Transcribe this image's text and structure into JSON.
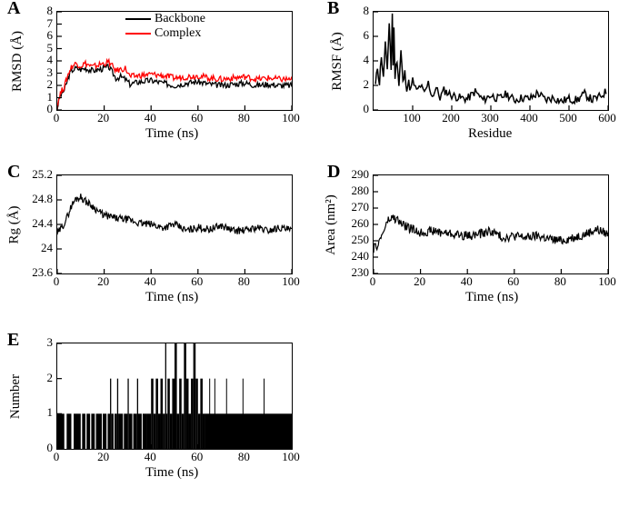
{
  "global": {
    "bg": "#ffffff",
    "fg": "#000000",
    "font_family": "Times New Roman, serif",
    "panel_label_fontsize": 20,
    "axis_label_fontsize": 15,
    "tick_fontsize": 13
  },
  "panels": {
    "A": {
      "label": "A",
      "type": "line",
      "xlabel": "Time (ns)",
      "ylabel": "RMSD (Å)",
      "xlim": [
        0,
        100
      ],
      "ylim": [
        0,
        8
      ],
      "xticks": [
        0,
        20,
        40,
        60,
        80,
        100
      ],
      "yticks": [
        0,
        1,
        2,
        3,
        4,
        5,
        6,
        7,
        8
      ],
      "line_width": 1.3,
      "series": [
        {
          "name": "Backbone",
          "color": "#000000",
          "x": [
            0,
            1,
            2,
            3,
            4,
            5,
            6,
            8,
            10,
            12,
            15,
            18,
            20,
            22,
            25,
            27,
            29,
            31,
            35,
            40,
            45,
            50,
            55,
            60,
            65,
            70,
            75,
            80,
            85,
            90,
            95,
            100
          ],
          "y": [
            0.2,
            1.0,
            1.4,
            1.6,
            2.2,
            2.8,
            3.2,
            3.4,
            3.3,
            3.4,
            3.2,
            3.3,
            3.4,
            3.5,
            2.6,
            2.7,
            2.5,
            2.1,
            2.3,
            2.4,
            2.2,
            2.0,
            2.2,
            2.3,
            2.1,
            2.0,
            2.1,
            2.2,
            2.0,
            2.1,
            2.0,
            2.0
          ]
        },
        {
          "name": "Complex",
          "color": "#ff0000",
          "x": [
            0,
            1,
            2,
            3,
            4,
            5,
            6,
            8,
            10,
            12,
            15,
            18,
            20,
            22,
            25,
            27,
            29,
            31,
            35,
            40,
            45,
            50,
            55,
            60,
            65,
            70,
            75,
            80,
            85,
            90,
            95,
            100
          ],
          "y": [
            0.3,
            1.2,
            1.6,
            1.9,
            2.5,
            3.1,
            3.5,
            3.8,
            3.6,
            3.8,
            3.5,
            3.7,
            3.8,
            3.9,
            3.2,
            3.3,
            3.4,
            2.7,
            2.8,
            2.9,
            2.8,
            2.6,
            2.7,
            2.8,
            2.6,
            2.5,
            2.6,
            2.7,
            2.5,
            2.6,
            2.5,
            2.5
          ]
        }
      ],
      "legend": {
        "pos": "top-inside",
        "items": [
          "Backbone",
          "Complex"
        ],
        "colors": [
          "#000000",
          "#ff0000"
        ]
      }
    },
    "B": {
      "label": "B",
      "type": "line",
      "xlabel": "Residue",
      "ylabel": "RMSF (Å)",
      "xlim": [
        0,
        600
      ],
      "ylim": [
        0,
        8
      ],
      "xticks": [
        100,
        200,
        300,
        400,
        500,
        600
      ],
      "yticks": [
        0,
        2,
        4,
        6,
        8
      ],
      "line_width": 1.5,
      "series": [
        {
          "name": "RMSF",
          "color": "#000000",
          "x": [
            5,
            10,
            15,
            20,
            25,
            30,
            35,
            40,
            45,
            48,
            50,
            52,
            55,
            60,
            65,
            70,
            75,
            80,
            85,
            90,
            95,
            100,
            110,
            120,
            130,
            140,
            150,
            160,
            170,
            180,
            200,
            220,
            240,
            260,
            280,
            300,
            320,
            340,
            360,
            380,
            400,
            420,
            440,
            460,
            480,
            500,
            520,
            540,
            560,
            580,
            595
          ],
          "y": [
            2.0,
            3.5,
            2.2,
            4.5,
            2.5,
            5.5,
            3.0,
            7.2,
            3.3,
            7.8,
            3.8,
            6.5,
            2.8,
            4.2,
            2.0,
            4.8,
            2.2,
            3.0,
            1.8,
            2.2,
            1.6,
            2.4,
            1.5,
            2.0,
            1.3,
            2.2,
            1.1,
            1.8,
            1.0,
            1.6,
            1.2,
            1.0,
            0.9,
            1.5,
            0.8,
            1.2,
            0.9,
            1.3,
            0.8,
            1.0,
            0.9,
            1.4,
            0.8,
            1.0,
            0.7,
            0.9,
            0.8,
            1.3,
            0.8,
            1.1,
            1.5
          ]
        }
      ]
    },
    "C": {
      "label": "C",
      "type": "line",
      "xlabel": "Time (ns)",
      "ylabel": "Rg (Å)",
      "xlim": [
        0,
        100
      ],
      "ylim": [
        23.6,
        25.2
      ],
      "xticks": [
        0,
        20,
        40,
        60,
        80,
        100
      ],
      "yticks": [
        23.6,
        24,
        24.4,
        24.8,
        25.2
      ],
      "line_width": 1.2,
      "series": [
        {
          "name": "Rg",
          "color": "#000000",
          "x": [
            0,
            2,
            4,
            6,
            8,
            10,
            12,
            15,
            18,
            20,
            25,
            30,
            35,
            40,
            45,
            50,
            55,
            60,
            65,
            70,
            75,
            80,
            85,
            90,
            95,
            100
          ],
          "y": [
            24.25,
            24.35,
            24.5,
            24.7,
            24.82,
            24.85,
            24.78,
            24.7,
            24.6,
            24.55,
            24.5,
            24.48,
            24.42,
            24.4,
            24.35,
            24.4,
            24.3,
            24.35,
            24.32,
            24.38,
            24.3,
            24.3,
            24.35,
            24.3,
            24.35,
            24.3
          ]
        }
      ]
    },
    "D": {
      "label": "D",
      "type": "line",
      "xlabel": "Time (ns)",
      "ylabel": "Area (nm²)",
      "xlim": [
        0,
        100
      ],
      "ylim": [
        230,
        290
      ],
      "xticks": [
        0,
        20,
        40,
        60,
        80,
        100
      ],
      "yticks": [
        230,
        240,
        250,
        260,
        270,
        280,
        290
      ],
      "line_width": 1.2,
      "series": [
        {
          "name": "Area",
          "color": "#000000",
          "x": [
            0,
            2,
            4,
            6,
            8,
            10,
            12,
            15,
            18,
            20,
            25,
            30,
            35,
            40,
            45,
            50,
            55,
            60,
            65,
            70,
            75,
            80,
            85,
            90,
            95,
            100
          ],
          "y": [
            245,
            248,
            255,
            262,
            264,
            263,
            260,
            258,
            256,
            255,
            256,
            255,
            254,
            253,
            254,
            256,
            252,
            253,
            252,
            253,
            251,
            250,
            252,
            254,
            257,
            254
          ]
        }
      ]
    },
    "E": {
      "label": "E",
      "type": "step-bar",
      "xlabel": "Time (ns)",
      "ylabel": "Number",
      "xlim": [
        0,
        100
      ],
      "ylim": [
        0,
        3
      ],
      "xticks": [
        0,
        20,
        40,
        60,
        80,
        100
      ],
      "yticks": [
        0,
        1,
        2,
        3
      ],
      "line_width": 1,
      "bar_color": "#000000",
      "series": [
        {
          "name": "Number",
          "color": "#000000",
          "spans": [
            [
              0,
              3,
              1
            ],
            [
              3,
              4,
              0
            ],
            [
              4,
              6,
              1
            ],
            [
              6,
              7,
              0
            ],
            [
              7,
              10,
              1
            ],
            [
              10,
              10.6,
              0
            ],
            [
              10.6,
              12,
              1
            ],
            [
              12,
              12.5,
              0
            ],
            [
              12.5,
              14,
              1
            ],
            [
              14,
              14.5,
              0
            ],
            [
              14.5,
              16,
              1
            ],
            [
              16,
              16.5,
              0
            ],
            [
              16.5,
              19,
              1
            ],
            [
              19,
              19.4,
              0
            ],
            [
              19.4,
              21,
              1
            ],
            [
              21,
              21.5,
              0
            ],
            [
              21.5,
              22.5,
              1
            ],
            [
              22.5,
              23,
              2
            ],
            [
              23,
              24,
              1
            ],
            [
              24,
              24.4,
              0
            ],
            [
              24.4,
              25.5,
              1
            ],
            [
              25.5,
              26,
              2
            ],
            [
              26,
              28,
              1
            ],
            [
              28,
              28.4,
              0
            ],
            [
              28.4,
              30,
              1
            ],
            [
              30,
              30.5,
              2
            ],
            [
              30.5,
              32,
              1
            ],
            [
              32,
              32.4,
              0
            ],
            [
              32.4,
              34,
              1
            ],
            [
              34,
              34.5,
              2
            ],
            [
              34.5,
              36,
              1
            ],
            [
              36,
              36.4,
              0
            ],
            [
              36.4,
              38,
              1
            ],
            [
              38,
              40,
              1
            ],
            [
              40,
              41,
              2
            ],
            [
              41,
              42,
              1
            ],
            [
              42,
              43,
              2
            ],
            [
              43,
              44,
              1
            ],
            [
              44,
              45,
              2
            ],
            [
              45,
              46,
              1
            ],
            [
              46,
              46.5,
              3
            ],
            [
              46.5,
              47,
              1
            ],
            [
              47,
              48,
              2
            ],
            [
              48,
              49,
              1
            ],
            [
              49,
              50,
              2
            ],
            [
              50,
              51,
              3
            ],
            [
              51,
              52,
              1
            ],
            [
              52,
              53,
              2
            ],
            [
              53,
              54,
              1
            ],
            [
              54,
              55,
              3
            ],
            [
              55,
              56,
              2
            ],
            [
              56,
              57,
              1
            ],
            [
              57,
              58,
              2
            ],
            [
              58,
              59,
              3
            ],
            [
              59,
              60,
              2
            ],
            [
              60,
              61,
              1
            ],
            [
              61,
              62,
              2
            ],
            [
              62,
              63,
              1
            ],
            [
              63,
              100,
              1
            ]
          ],
          "spikes_at_1": [
            64.8,
            67,
            72,
            79,
            88
          ]
        }
      ]
    }
  }
}
